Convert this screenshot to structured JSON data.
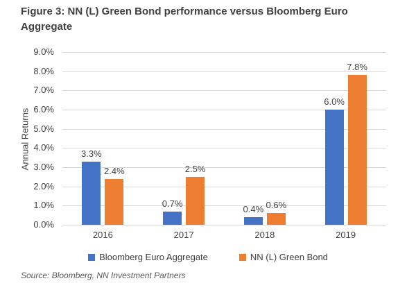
{
  "figure": {
    "title_line1": "Figure 3: NN (L) Green Bond performance versus Bloomberg Euro",
    "title_line2": "Aggregate",
    "source": "Source: Bloomberg, NN Investment Partners"
  },
  "colors": {
    "series1": "#4472C4",
    "series2": "#ED7D31",
    "gridline": "#D9D9D9",
    "axis_text": "#404040",
    "source_text": "#595959"
  },
  "chart_data": {
    "type": "bar",
    "categories": [
      "2016",
      "2017",
      "2018",
      "2019"
    ],
    "series": [
      {
        "name": "Bloomberg Euro Aggregate",
        "color": "#4472C4",
        "values": [
          3.3,
          0.7,
          0.4,
          6.0
        ],
        "labels": [
          "3.3%",
          "0.7%",
          "0.4%",
          "6.0%"
        ]
      },
      {
        "name": "NN (L) Green Bond",
        "color": "#ED7D31",
        "values": [
          2.4,
          2.5,
          0.6,
          7.8
        ],
        "labels": [
          "2.4%",
          "2.5%",
          "0.6%",
          "7.8%"
        ]
      }
    ],
    "xlabel": "",
    "ylabel": "Annual Returns",
    "ylim": [
      0,
      9
    ],
    "ytick_step": 1,
    "ytick_labels": [
      "0.0%",
      "1.0%",
      "2.0%",
      "3.0%",
      "4.0%",
      "5.0%",
      "6.0%",
      "7.0%",
      "8.0%",
      "9.0%"
    ],
    "grid": true,
    "legend_position": "bottom"
  }
}
